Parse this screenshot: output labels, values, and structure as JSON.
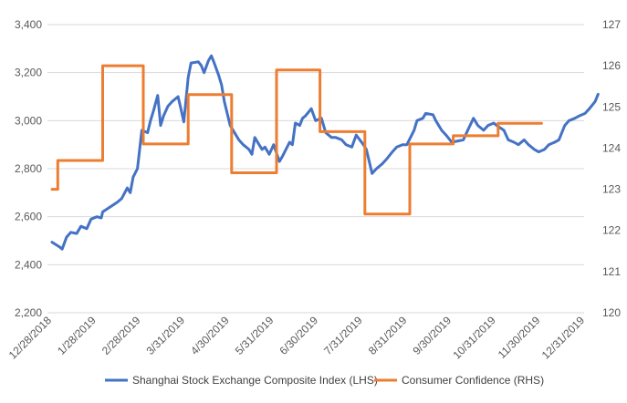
{
  "chart_data": {
    "type": "line",
    "x_ticks": [
      "12/28/2018",
      "1/28/2019",
      "2/28/2019",
      "3/31/2019",
      "4/30/2019",
      "5/31/2019",
      "6/30/2019",
      "7/31/2019",
      "8/31/2019",
      "9/30/2019",
      "10/31/2019",
      "11/30/2019",
      "12/31/2019"
    ],
    "y_left": {
      "ylim": [
        2200,
        3400
      ],
      "ticks": [
        "2,200",
        "2,400",
        "2,600",
        "2,800",
        "3,000",
        "3,200",
        "3,400"
      ]
    },
    "y_right": {
      "ylim": [
        120,
        127
      ],
      "ticks": [
        "120",
        "121",
        "122",
        "123",
        "124",
        "125",
        "126",
        "127"
      ]
    },
    "grid": "horizontal",
    "legend_position": "bottom",
    "colors": {
      "shanghai": "#4472c4",
      "confidence": "#ed7d31",
      "grid": "#d9d9d9",
      "text": "#595959"
    },
    "series": [
      {
        "name": "Shanghai Stock Exchange Composite Index (LHS)",
        "axis": "left",
        "x": [
          "2018-12-28",
          "2019-01-02",
          "2019-01-04",
          "2019-01-07",
          "2019-01-10",
          "2019-01-14",
          "2019-01-17",
          "2019-01-21",
          "2019-01-24",
          "2019-01-28",
          "2019-01-31",
          "2019-02-01",
          "2019-02-11",
          "2019-02-14",
          "2019-02-18",
          "2019-02-20",
          "2019-02-22",
          "2019-02-25",
          "2019-02-28",
          "2019-03-04",
          "2019-03-06",
          "2019-03-08",
          "2019-03-11",
          "2019-03-13",
          "2019-03-15",
          "2019-03-18",
          "2019-03-21",
          "2019-03-25",
          "2019-03-27",
          "2019-03-29",
          "2019-04-01",
          "2019-04-03",
          "2019-04-08",
          "2019-04-10",
          "2019-04-12",
          "2019-04-15",
          "2019-04-17",
          "2019-04-19",
          "2019-04-22",
          "2019-04-24",
          "2019-04-26",
          "2019-04-30",
          "2019-05-06",
          "2019-05-09",
          "2019-05-13",
          "2019-05-15",
          "2019-05-17",
          "2019-05-20",
          "2019-05-22",
          "2019-05-24",
          "2019-05-27",
          "2019-05-30",
          "2019-06-03",
          "2019-06-05",
          "2019-06-10",
          "2019-06-12",
          "2019-06-14",
          "2019-06-17",
          "2019-06-19",
          "2019-06-21",
          "2019-06-25",
          "2019-06-28",
          "2019-07-02",
          "2019-07-05",
          "2019-07-09",
          "2019-07-12",
          "2019-07-16",
          "2019-07-19",
          "2019-07-23",
          "2019-07-26",
          "2019-07-31",
          "2019-08-02",
          "2019-08-06",
          "2019-08-09",
          "2019-08-13",
          "2019-08-16",
          "2019-08-20",
          "2019-08-23",
          "2019-08-27",
          "2019-08-30",
          "2019-09-04",
          "2019-09-06",
          "2019-09-10",
          "2019-09-12",
          "2019-09-17",
          "2019-09-19",
          "2019-09-23",
          "2019-09-26",
          "2019-09-30",
          "2019-10-08",
          "2019-10-11",
          "2019-10-15",
          "2019-10-18",
          "2019-10-22",
          "2019-10-25",
          "2019-10-29",
          "2019-10-31",
          "2019-11-05",
          "2019-11-08",
          "2019-11-12",
          "2019-11-15",
          "2019-11-19",
          "2019-11-22",
          "2019-11-26",
          "2019-11-29",
          "2019-12-03",
          "2019-12-06",
          "2019-12-10",
          "2019-12-13",
          "2019-12-17",
          "2019-12-20",
          "2019-12-24",
          "2019-12-27",
          "2019-12-31",
          "2020-01-03",
          "2020-01-07",
          "2020-01-09"
        ],
        "values": [
          2494,
          2475,
          2465,
          2515,
          2535,
          2530,
          2560,
          2550,
          2590,
          2600,
          2595,
          2620,
          2660,
          2675,
          2720,
          2700,
          2765,
          2800,
          2960,
          2950,
          3000,
          3040,
          3105,
          2980,
          3020,
          3060,
          3080,
          3100,
          3050,
          2995,
          3180,
          3240,
          3245,
          3230,
          3200,
          3250,
          3270,
          3240,
          3190,
          3150,
          3080,
          2980,
          2920,
          2900,
          2880,
          2860,
          2930,
          2900,
          2880,
          2890,
          2860,
          2900,
          2830,
          2850,
          2910,
          2900,
          2990,
          2980,
          3010,
          3020,
          3050,
          3000,
          3010,
          2950,
          2930,
          2930,
          2920,
          2900,
          2890,
          2940,
          2900,
          2880,
          2780,
          2800,
          2820,
          2840,
          2870,
          2890,
          2900,
          2900,
          2960,
          3000,
          3010,
          3030,
          3025,
          3000,
          2960,
          2940,
          2910,
          2920,
          2960,
          3010,
          2980,
          2960,
          2980,
          2990,
          2980,
          2960,
          2920,
          2910,
          2900,
          2920,
          2900,
          2880,
          2870,
          2880,
          2900,
          2910,
          2920,
          2980,
          3000,
          3010,
          3020,
          3030,
          3050,
          3080,
          3110
        ]
      },
      {
        "name": "Consumer Confidence (RHS)",
        "axis": "right",
        "step": true,
        "x": [
          "2018-12-28",
          "2019-01-01",
          "2019-02-01",
          "2019-03-01",
          "2019-04-01",
          "2019-05-01",
          "2019-06-01",
          "2019-07-01",
          "2019-08-01",
          "2019-09-01",
          "2019-10-01",
          "2019-11-01",
          "2019-12-01"
        ],
        "values": [
          123.0,
          123.7,
          126.0,
          124.1,
          125.3,
          123.4,
          125.9,
          124.4,
          122.4,
          124.1,
          124.3,
          124.6,
          124.6
        ]
      }
    ]
  }
}
